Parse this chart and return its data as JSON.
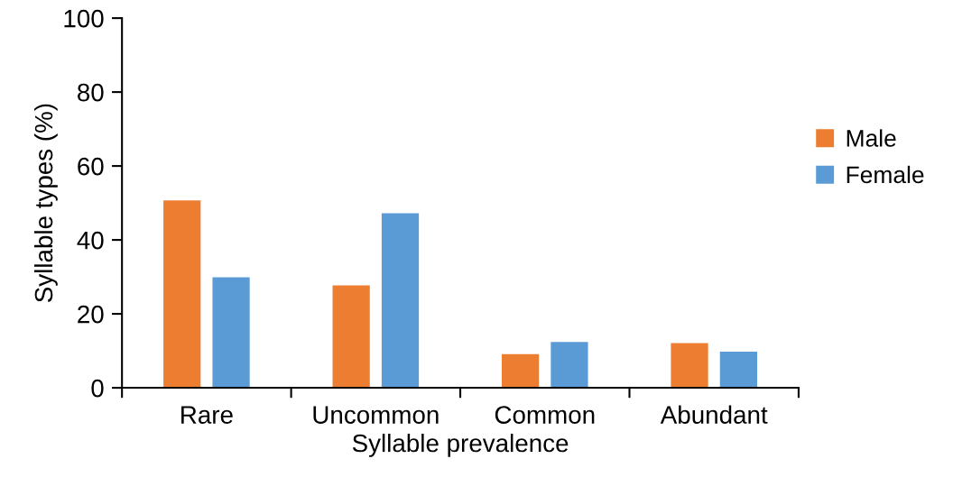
{
  "chart_data": {
    "type": "bar",
    "xlabel": "Syllable prevalence",
    "ylabel": "Syllable types (%)",
    "categories": [
      "Rare",
      "Uncommon",
      "Common",
      "Abundant"
    ],
    "series": [
      {
        "name": "Male",
        "color": "#ed7d31",
        "values": [
          50.7,
          27.7,
          9.1,
          12.1
        ]
      },
      {
        "name": "Female",
        "color": "#5b9bd5",
        "values": [
          29.9,
          47.2,
          12.4,
          9.8
        ]
      }
    ],
    "ylim": [
      0,
      100
    ],
    "yticks": [
      0,
      20,
      40,
      60,
      80,
      100
    ],
    "grid": false,
    "legend": "right"
  }
}
